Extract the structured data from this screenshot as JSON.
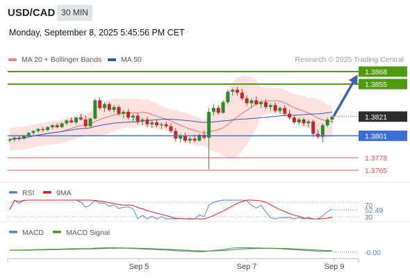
{
  "header": {
    "symbol": "USD/CAD",
    "timeframe": "30 MIN",
    "datetime": "Monday, September 8, 2025 5:45:56 PM CET"
  },
  "legend": {
    "ma20": "MA 20 + Bollinger Bands",
    "ma50": "MA 50",
    "credit": "Research © 2025 Trading Central"
  },
  "colors": {
    "resistance": "#4f9a10",
    "support": "#3c6fd6",
    "current": "#2e2e2e",
    "minor_support": "#e05050",
    "ma20": "#f07070",
    "ma50": "#2a5aa0",
    "bollinger_fill": "#fde0e0",
    "up_candle": "#2b8a2b",
    "down_candle": "#c02828",
    "arrow": "#3a62a8",
    "rsi": "#5b7fd8",
    "rsi_ma": "#d02020",
    "macd": "#5b7fd8",
    "macd_signal": "#4a9a1a"
  },
  "levels": [
    {
      "value": "1.3868",
      "kind": "resistance"
    },
    {
      "value": "1.3855",
      "kind": "resistance"
    },
    {
      "value": "1.3821",
      "kind": "current"
    },
    {
      "value": "1.3801",
      "kind": "support"
    },
    {
      "value": "1.3778",
      "kind": "minor_support"
    },
    {
      "value": "1.3765",
      "kind": "minor_support"
    }
  ],
  "rsi": {
    "label": "RSI",
    "ma_label": "9MA",
    "value": "52.49",
    "level_upper": "70",
    "level_lower": "30"
  },
  "macd": {
    "label": "MACD",
    "signal_label": "MACD Signal",
    "value": "-0.00"
  },
  "xaxis": [
    "Sep 5",
    "Sep 7",
    "Sep 9"
  ],
  "chart_data": {
    "type": "candlestick",
    "x_ticks": [
      "Sep 5",
      "Sep 7",
      "Sep 9"
    ],
    "ylim": [
      1.3757,
      1.3876
    ],
    "current_price": 1.3821,
    "candles": [
      [
        1.3796,
        1.3799,
        1.3794,
        1.3797
      ],
      [
        1.3797,
        1.38,
        1.3795,
        1.3799
      ],
      [
        1.3799,
        1.3801,
        1.3796,
        1.3798
      ],
      [
        1.3798,
        1.3802,
        1.3797,
        1.3801
      ],
      [
        1.3801,
        1.3805,
        1.38,
        1.3804
      ],
      [
        1.3804,
        1.3807,
        1.3802,
        1.3806
      ],
      [
        1.3806,
        1.3809,
        1.3804,
        1.3808
      ],
      [
        1.3808,
        1.381,
        1.3805,
        1.3807
      ],
      [
        1.3807,
        1.3811,
        1.3806,
        1.381
      ],
      [
        1.381,
        1.3813,
        1.3808,
        1.3812
      ],
      [
        1.3812,
        1.3814,
        1.3809,
        1.381
      ],
      [
        1.381,
        1.3815,
        1.3809,
        1.3814
      ],
      [
        1.3814,
        1.3818,
        1.3812,
        1.3817
      ],
      [
        1.3817,
        1.382,
        1.3814,
        1.3815
      ],
      [
        1.3815,
        1.3821,
        1.3813,
        1.382
      ],
      [
        1.382,
        1.3824,
        1.3817,
        1.3818
      ],
      [
        1.3818,
        1.3822,
        1.3809,
        1.3811
      ],
      [
        1.3811,
        1.382,
        1.381,
        1.3819
      ],
      [
        1.3819,
        1.384,
        1.3818,
        1.3838
      ],
      [
        1.3838,
        1.3841,
        1.3828,
        1.383
      ],
      [
        1.383,
        1.3836,
        1.3826,
        1.3834
      ],
      [
        1.3834,
        1.3836,
        1.3826,
        1.3828
      ],
      [
        1.3828,
        1.3833,
        1.3825,
        1.3831
      ],
      [
        1.3831,
        1.3833,
        1.3822,
        1.3824
      ],
      [
        1.3824,
        1.3828,
        1.3819,
        1.3826
      ],
      [
        1.3826,
        1.3829,
        1.3818,
        1.382
      ],
      [
        1.382,
        1.3824,
        1.3815,
        1.3822
      ],
      [
        1.3822,
        1.3825,
        1.3813,
        1.3816
      ],
      [
        1.3816,
        1.382,
        1.3812,
        1.3818
      ],
      [
        1.3818,
        1.3821,
        1.381,
        1.3813
      ],
      [
        1.3813,
        1.3817,
        1.3809,
        1.3815
      ],
      [
        1.3815,
        1.3818,
        1.381,
        1.3812
      ],
      [
        1.3812,
        1.3815,
        1.3808,
        1.3813
      ],
      [
        1.3813,
        1.3816,
        1.3809,
        1.3811
      ],
      [
        1.3811,
        1.3814,
        1.3804,
        1.3806
      ],
      [
        1.3806,
        1.3809,
        1.3795,
        1.3798
      ],
      [
        1.3798,
        1.3803,
        1.3794,
        1.3801
      ],
      [
        1.3801,
        1.3804,
        1.3794,
        1.3796
      ],
      [
        1.3796,
        1.38,
        1.3793,
        1.3798
      ],
      [
        1.3798,
        1.3802,
        1.3794,
        1.3796
      ],
      [
        1.3796,
        1.3803,
        1.3795,
        1.3802
      ],
      [
        1.3802,
        1.3806,
        1.3797,
        1.3799
      ],
      [
        1.3799,
        1.383,
        1.3766,
        1.3826
      ],
      [
        1.3826,
        1.3834,
        1.3822,
        1.383
      ],
      [
        1.383,
        1.3833,
        1.3823,
        1.3825
      ],
      [
        1.3825,
        1.3838,
        1.3824,
        1.3836
      ],
      [
        1.3836,
        1.3849,
        1.3834,
        1.3847
      ],
      [
        1.3847,
        1.3851,
        1.3843,
        1.3849
      ],
      [
        1.3849,
        1.3852,
        1.3843,
        1.3846
      ],
      [
        1.3846,
        1.385,
        1.3838,
        1.384
      ],
      [
        1.384,
        1.3843,
        1.3832,
        1.3835
      ],
      [
        1.3835,
        1.384,
        1.383,
        1.3838
      ],
      [
        1.3838,
        1.3842,
        1.3833,
        1.3834
      ],
      [
        1.3834,
        1.3838,
        1.383,
        1.3836
      ],
      [
        1.3836,
        1.3839,
        1.3829,
        1.3831
      ],
      [
        1.3831,
        1.3835,
        1.3827,
        1.3833
      ],
      [
        1.3833,
        1.3836,
        1.3825,
        1.3827
      ],
      [
        1.3827,
        1.3832,
        1.3824,
        1.383
      ],
      [
        1.383,
        1.3833,
        1.3822,
        1.3824
      ],
      [
        1.3824,
        1.3828,
        1.3818,
        1.382
      ],
      [
        1.382,
        1.3822,
        1.3813,
        1.3815
      ],
      [
        1.3815,
        1.382,
        1.3812,
        1.3818
      ],
      [
        1.3818,
        1.382,
        1.3811,
        1.3814
      ],
      [
        1.3814,
        1.3818,
        1.381,
        1.3816
      ],
      [
        1.3816,
        1.3818,
        1.38,
        1.3803
      ],
      [
        1.3803,
        1.3807,
        1.3798,
        1.38
      ],
      [
        1.38,
        1.3814,
        1.3794,
        1.3812
      ],
      [
        1.3812,
        1.382,
        1.381,
        1.3818
      ],
      [
        1.3818,
        1.3822,
        1.3814,
        1.3821
      ]
    ]
  }
}
